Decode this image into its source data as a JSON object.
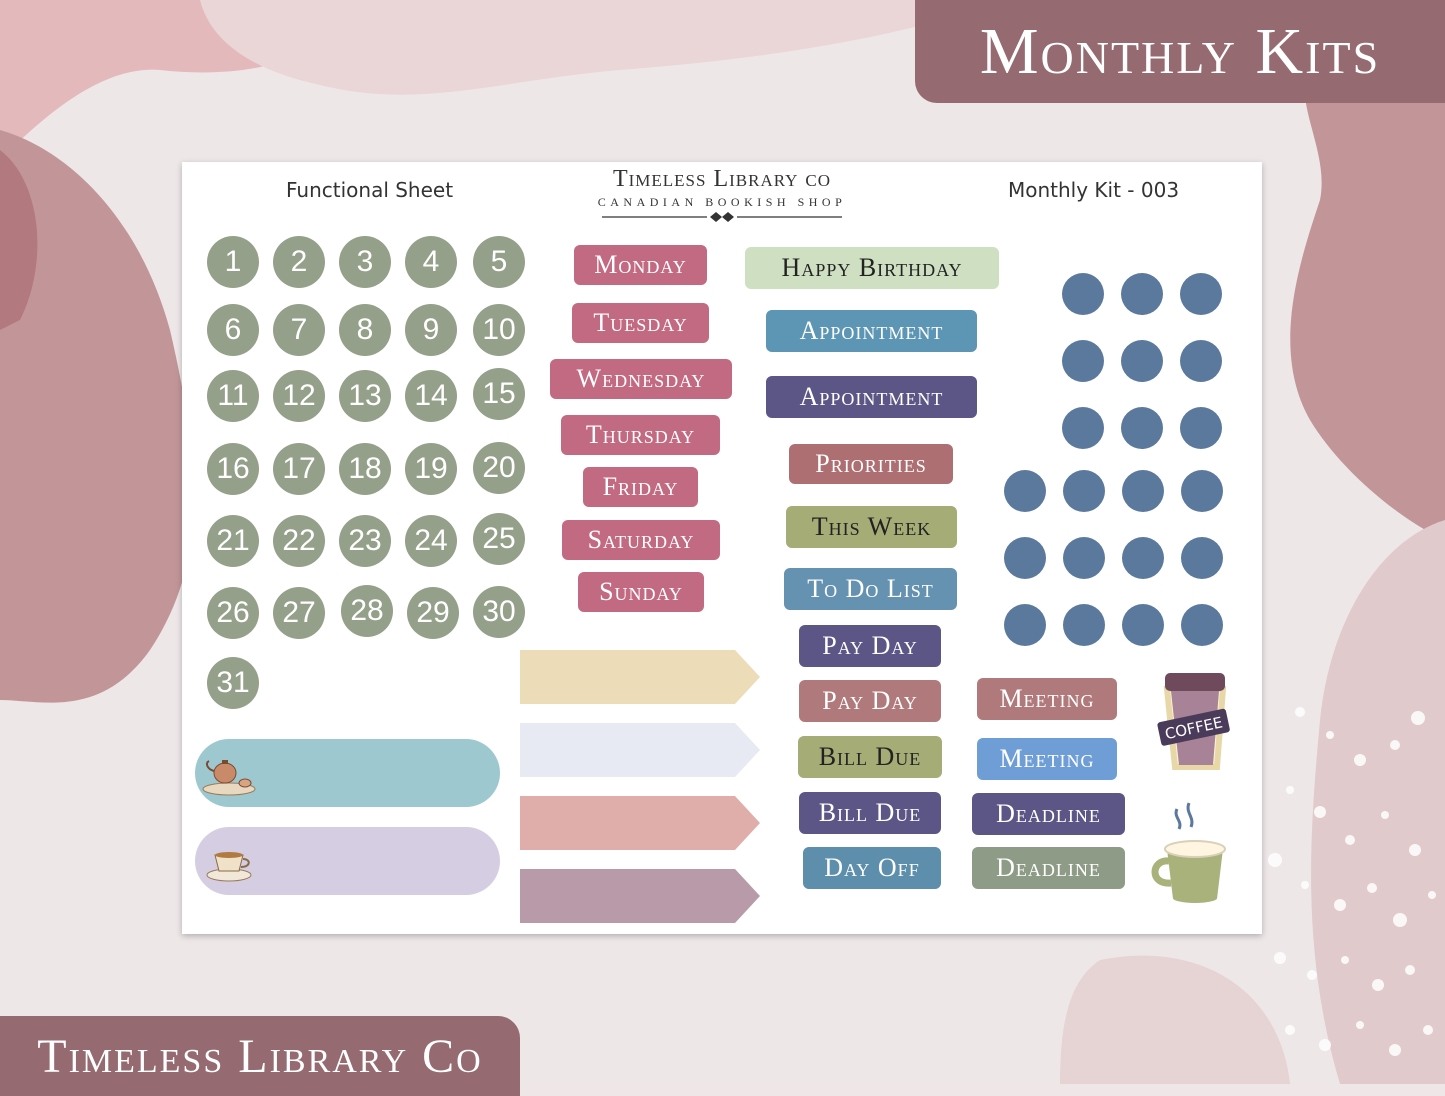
{
  "banner": {
    "title": "Monthly Kits",
    "brand": "Timeless Library Co"
  },
  "sheet": {
    "left_label": "Functional Sheet",
    "right_label": "Monthly Kit - 003",
    "logo_title": "Timeless Library co",
    "logo_subtitle": "CANADIAN BOOKISH SHOP"
  },
  "numbers": [
    "1",
    "2",
    "3",
    "4",
    "5",
    "6",
    "7",
    "8",
    "9",
    "10",
    "11",
    "12",
    "13",
    "14",
    "15",
    "16",
    "17",
    "18",
    "19",
    "20",
    "21",
    "22",
    "23",
    "24",
    "25",
    "26",
    "27",
    "28",
    "29",
    "30",
    "31"
  ],
  "days": [
    "Monday",
    "Tuesday",
    "Wednesday",
    "Thursday",
    "Friday",
    "Saturday",
    "Sunday"
  ],
  "labels": {
    "happy_birthday": "Happy Birthday",
    "appointment_1": "Appointment",
    "appointment_2": "Appointment",
    "priorities": "Priorities",
    "this_week": "This Week",
    "to_do_list": "To Do List",
    "pay_day_1": "Pay Day",
    "pay_day_2": "Pay Day",
    "bill_due_1": "Bill Due",
    "bill_due_2": "Bill Due",
    "day_off": "Day Off",
    "meeting_1": "Meeting",
    "meeting_2": "Meeting",
    "deadline_1": "Deadline",
    "deadline_2": "Deadline"
  },
  "icons": {
    "coffee_cup_text": "COFFEE"
  },
  "colors": {
    "banner": "#956a70",
    "number_circle": "#94a08a",
    "dot": "#5b799c",
    "day_label": "#c26a81"
  }
}
